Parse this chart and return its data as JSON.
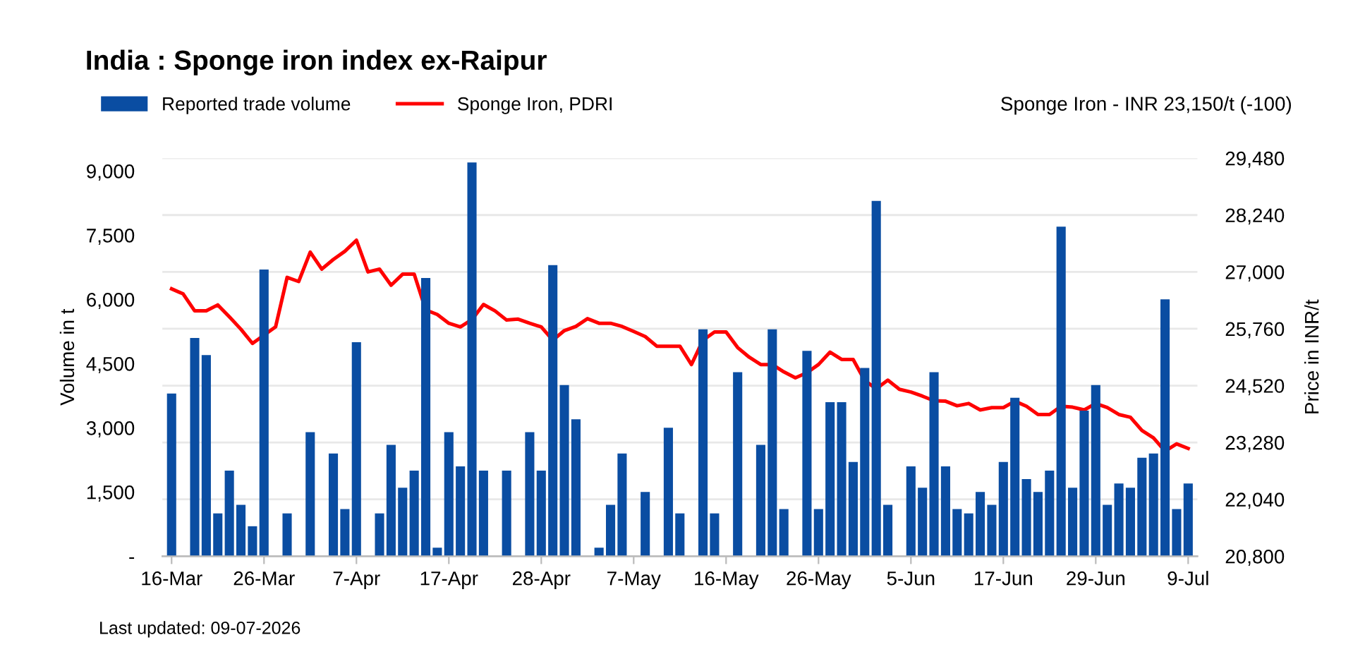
{
  "chart_data": {
    "type": "bar",
    "title": "India : Sponge iron index ex-Raipur",
    "xlabel": null,
    "ylabel": "Volume in t",
    "y2label": "Price in INR/t",
    "categories": [
      "16-Mar",
      null,
      null,
      null,
      null,
      null,
      null,
      null,
      "26-Mar",
      null,
      null,
      null,
      null,
      null,
      null,
      null,
      "7-Apr",
      null,
      null,
      null,
      null,
      null,
      null,
      null,
      "17-Apr",
      null,
      null,
      null,
      null,
      null,
      null,
      null,
      "28-Apr",
      null,
      null,
      null,
      null,
      null,
      null,
      null,
      "7-May",
      null,
      null,
      null,
      null,
      null,
      null,
      null,
      "16-May",
      null,
      null,
      null,
      null,
      null,
      null,
      null,
      "26-May",
      null,
      null,
      null,
      null,
      null,
      null,
      null,
      "5-Jun",
      null,
      null,
      null,
      null,
      null,
      null,
      null,
      "17-Jun",
      null,
      null,
      null,
      null,
      null,
      null,
      null,
      "29-Jun",
      null,
      null,
      null,
      null,
      null,
      null,
      null,
      "9-Jul"
    ],
    "series": [
      {
        "name": "Reported trade volume",
        "color": "#0a4da2",
        "values": [
          3800,
          null,
          5100,
          4700,
          1000,
          2000,
          1200,
          700,
          6700,
          null,
          1000,
          null,
          2900,
          null,
          2400,
          1100,
          5000,
          null,
          1000,
          2600,
          1600,
          2000,
          6500,
          200,
          2900,
          2100,
          9200,
          2000,
          null,
          2000,
          null,
          2900,
          2000,
          6800,
          4000,
          3200,
          null,
          200,
          1200,
          2400,
          null,
          1500,
          null,
          3000,
          1000,
          null,
          5300,
          1000,
          null,
          4300,
          null,
          2600,
          5300,
          1100,
          null,
          4800,
          1100,
          3600,
          3600,
          2200,
          4400,
          8300,
          1200,
          null,
          2100,
          1600,
          4300,
          2100,
          1100,
          1000,
          1500,
          1200,
          2200,
          3700,
          1800,
          1500,
          2000,
          7700,
          1600,
          3400,
          4000,
          1200,
          1700,
          1600,
          2300,
          2400,
          6000,
          1100,
          1700
        ]
      },
      {
        "name": "Sponge Iron, PDRI",
        "type": "line",
        "axis": "y2",
        "color": "#ff0000",
        "values": [
          26630,
          26520,
          26150,
          26150,
          26280,
          26020,
          25750,
          25440,
          25620,
          25800,
          26880,
          26790,
          27430,
          27060,
          27270,
          27450,
          27690,
          27000,
          27060,
          26710,
          26950,
          26950,
          26170,
          26070,
          25880,
          25800,
          25960,
          26290,
          26150,
          25950,
          25970,
          25880,
          25800,
          25510,
          25720,
          25810,
          25980,
          25880,
          25880,
          25810,
          25700,
          25590,
          25380,
          25380,
          25380,
          24980,
          25510,
          25690,
          25690,
          25350,
          25140,
          24980,
          24980,
          24820,
          24690,
          24800,
          24980,
          25250,
          25090,
          25090,
          24630,
          24450,
          24640,
          24440,
          24380,
          24290,
          24190,
          24180,
          24080,
          24130,
          23990,
          24040,
          24040,
          24180,
          24070,
          23890,
          23890,
          24070,
          24050,
          23990,
          24130,
          24040,
          23890,
          23830,
          23540,
          23380,
          23090,
          23250,
          23150
        ]
      }
    ],
    "ylim": [
      0,
      9300
    ],
    "yticks": [
      {
        "value": 0,
        "label": "-"
      },
      {
        "value": 1500,
        "label": "1,500"
      },
      {
        "value": 3000,
        "label": "3,000"
      },
      {
        "value": 4500,
        "label": "4,500"
      },
      {
        "value": 6000,
        "label": "6,000"
      },
      {
        "value": 7500,
        "label": "7,500"
      },
      {
        "value": 9000,
        "label": "9,000"
      }
    ],
    "y2lim": [
      20800,
      29480
    ],
    "y2ticks": [
      {
        "value": 20800,
        "label": "20,800"
      },
      {
        "value": 22040,
        "label": "22,040"
      },
      {
        "value": 23280,
        "label": "23,280"
      },
      {
        "value": 24520,
        "label": "24,520"
      },
      {
        "value": 25760,
        "label": "25,760"
      },
      {
        "value": 27000,
        "label": "27,000"
      },
      {
        "value": 28240,
        "label": "28,240"
      },
      {
        "value": 29480,
        "label": "29,480"
      }
    ],
    "grid": "y",
    "legend": "top left",
    "line_style": "solid",
    "marker": "none",
    "annotations": [
      "Sponge Iron - INR 23,150/t (-100)",
      "Last updated: 09-07-2026"
    ]
  }
}
